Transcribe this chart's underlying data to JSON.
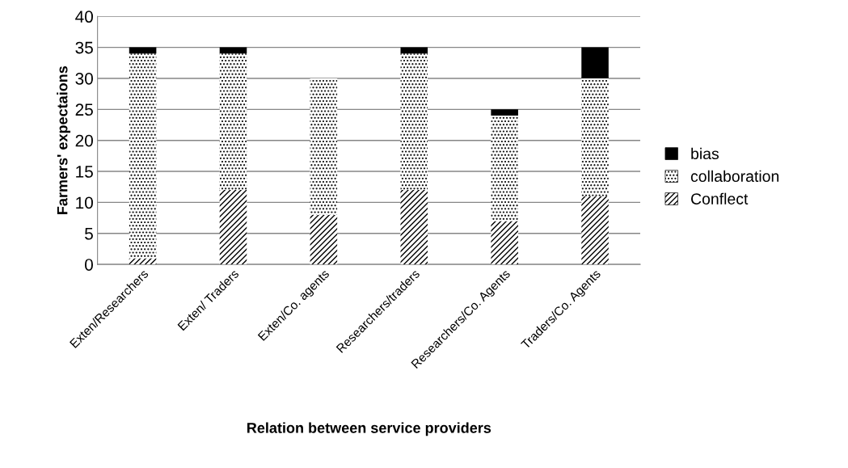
{
  "chart_data": {
    "type": "bar",
    "stacked": true,
    "xlabel": "Relation between service providers",
    "ylabel": "Farmers' expectaions",
    "categories": [
      "Exten/Researchers",
      "Exten/ Traders",
      "Exten/Co. agents",
      "Researchers/traders",
      "Researchers/Co. Agents",
      "Traders/Co. Agents"
    ],
    "series": [
      {
        "name": "Conflect",
        "color": "#ffffff",
        "values": [
          1,
          12,
          8,
          12,
          7,
          11
        ]
      },
      {
        "name": "collaboration",
        "color": "#ffffff",
        "values": [
          33,
          22,
          22,
          22,
          17,
          19
        ]
      },
      {
        "name": "bias",
        "color": "#000000",
        "values": [
          1,
          1,
          0,
          1,
          1,
          5
        ]
      }
    ],
    "ylim": [
      0,
      40
    ],
    "yticks": [
      0,
      5,
      10,
      15,
      20,
      25,
      30,
      35,
      40
    ],
    "grid": "y",
    "legend": "right"
  }
}
